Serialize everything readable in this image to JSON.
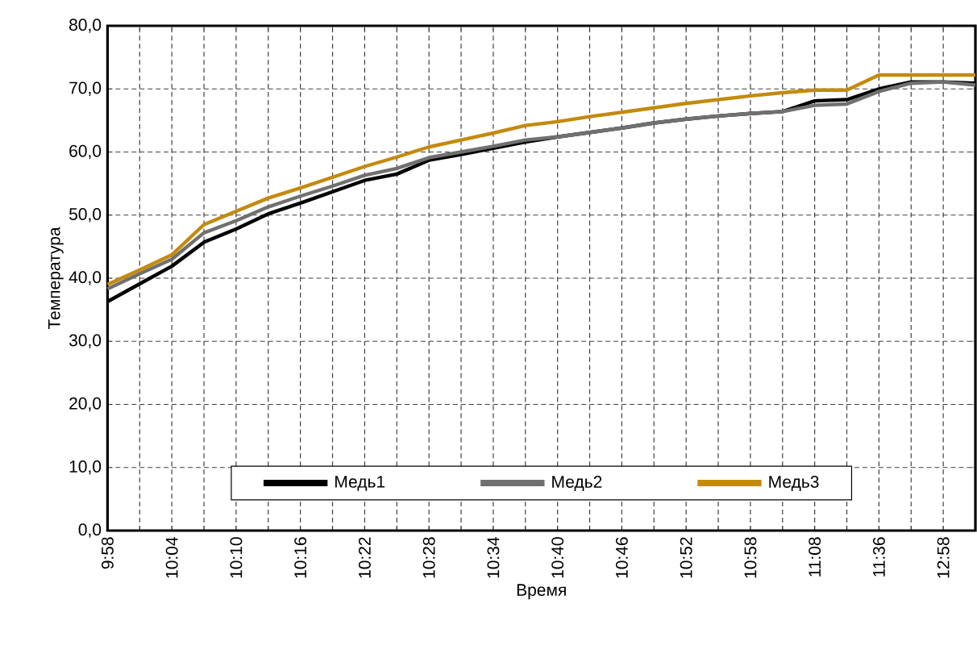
{
  "chart_data": {
    "type": "line",
    "xlabel": "Время",
    "ylabel": "Температура",
    "categories": [
      "9:58",
      null,
      "10:04",
      null,
      "10:10",
      null,
      "10:16",
      null,
      "10:22",
      null,
      "10:28",
      null,
      "10:34",
      null,
      "10:40",
      null,
      "10:46",
      null,
      "10:52",
      null,
      "10:58",
      null,
      "11:08",
      null,
      "11:36",
      null,
      "12:58",
      null
    ],
    "series": [
      {
        "name": "Медь1",
        "color": "#000000",
        "values": [
          36.3,
          39.1,
          41.9,
          45.7,
          47.8,
          50.2,
          51.9,
          53.7,
          55.5,
          56.5,
          58.7,
          59.6,
          60.6,
          61.6,
          62.4,
          63.1,
          63.8,
          64.6,
          65.2,
          65.7,
          66.1,
          66.4,
          68.1,
          68.3,
          70.0,
          71.1,
          71.1,
          70.9
        ]
      },
      {
        "name": "Медь2",
        "color": "#707070",
        "values": [
          38.3,
          40.7,
          43.0,
          47.2,
          49.1,
          51.3,
          53.0,
          54.6,
          56.3,
          57.4,
          59.1,
          60.0,
          60.9,
          61.9,
          62.4,
          63.1,
          63.8,
          64.6,
          65.2,
          65.7,
          66.1,
          66.4,
          67.4,
          67.6,
          69.6,
          70.9,
          71.1,
          70.6
        ]
      },
      {
        "name": "Медь3",
        "color": "#c48a0e",
        "values": [
          39.0,
          41.3,
          43.7,
          48.5,
          50.6,
          52.7,
          54.3,
          56.0,
          57.7,
          59.2,
          60.8,
          61.9,
          63.0,
          64.2,
          64.8,
          65.6,
          66.3,
          67.0,
          67.7,
          68.3,
          68.9,
          69.4,
          69.8,
          69.8,
          72.2,
          72.2,
          72.2,
          72.2
        ]
      }
    ],
    "ylim": [
      0,
      80
    ],
    "yticks": [
      {
        "value": 0,
        "label": "0,0"
      },
      {
        "value": 10,
        "label": "10,0"
      },
      {
        "value": 20,
        "label": "20,0"
      },
      {
        "value": 30,
        "label": "30,0"
      },
      {
        "value": 40,
        "label": "40,0"
      },
      {
        "value": 50,
        "label": "50,0"
      },
      {
        "value": 60,
        "label": "60,0"
      },
      {
        "value": 70,
        "label": "70,0"
      },
      {
        "value": 80,
        "label": "80,0"
      }
    ],
    "grid": true,
    "legend": "bottom",
    "marker": "none",
    "line_style": "solid"
  }
}
